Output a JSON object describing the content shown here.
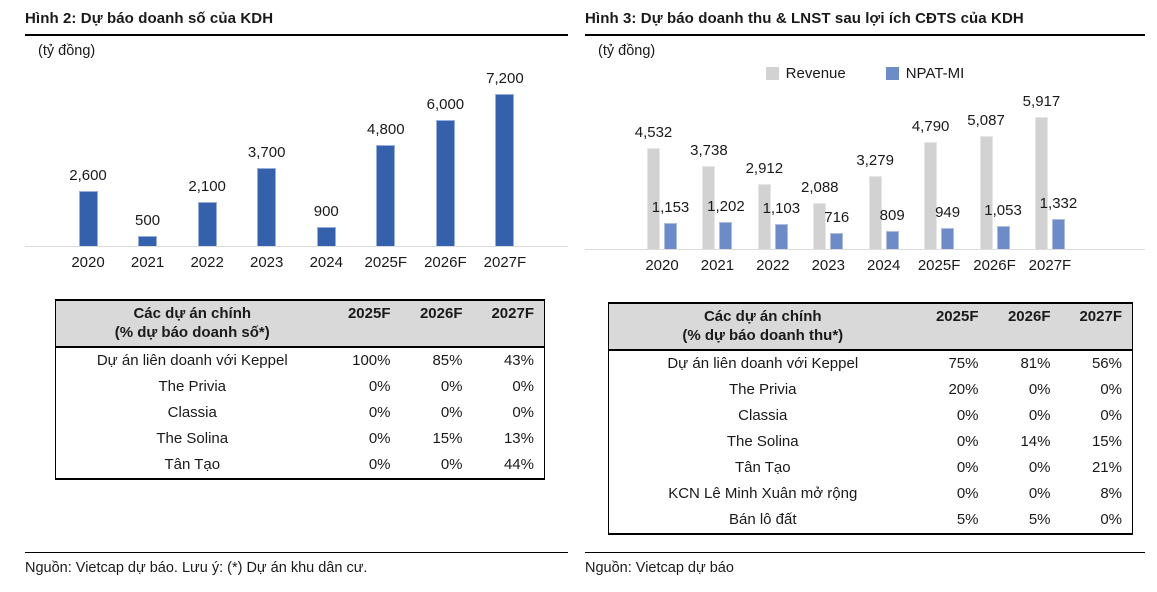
{
  "figure2": {
    "title": "Hình 2: Dự báo doanh số của KDH",
    "unit_label": "(tỷ đồng)",
    "source_note": "Nguồn: Vietcap dự báo. Lưu ý: (*) Dự án khu dân cư.",
    "table": {
      "header_line1": "Các dự án chính",
      "header_line2": "(% dự báo doanh số*)",
      "year_headers": [
        "2025F",
        "2026F",
        "2027F"
      ],
      "rows": [
        {
          "project": "Dự án liên doanh với Keppel",
          "values": [
            "100%",
            "85%",
            "43%"
          ]
        },
        {
          "project": "The Privia",
          "values": [
            "0%",
            "0%",
            "0%"
          ]
        },
        {
          "project": "Classia",
          "values": [
            "0%",
            "0%",
            "0%"
          ]
        },
        {
          "project": "The Solina",
          "values": [
            "0%",
            "15%",
            "13%"
          ]
        },
        {
          "project": "Tân Tạo",
          "values": [
            "0%",
            "0%",
            "44%"
          ]
        }
      ]
    }
  },
  "figure3": {
    "title": "Hình 3: Dự báo doanh thu & LNST sau lợi ích CĐTS của KDH",
    "unit_label": "(tỷ đồng)",
    "source_note": "Nguồn: Vietcap dự báo",
    "legend": [
      {
        "label": "Revenue",
        "color": "#d2d2d2"
      },
      {
        "label": "NPAT-MI",
        "color": "#6d8cc7"
      }
    ],
    "table": {
      "header_line1": "Các dự án chính",
      "header_line2": "(% dự báo doanh thu*)",
      "year_headers": [
        "2025F",
        "2026F",
        "2027F"
      ],
      "rows": [
        {
          "project": "Dự án liên doanh với Keppel",
          "values": [
            "75%",
            "81%",
            "56%"
          ]
        },
        {
          "project": "The Privia",
          "values": [
            "20%",
            "0%",
            "0%"
          ]
        },
        {
          "project": "Classia",
          "values": [
            "0%",
            "0%",
            "0%"
          ]
        },
        {
          "project": "The Solina",
          "values": [
            "0%",
            "14%",
            "15%"
          ]
        },
        {
          "project": "Tân Tạo",
          "values": [
            "0%",
            "0%",
            "21%"
          ]
        },
        {
          "project": "KCN Lê Minh Xuân mở rộng",
          "values": [
            "0%",
            "0%",
            "8%"
          ]
        },
        {
          "project": "Bán lô đất",
          "values": [
            "5%",
            "5%",
            "0%"
          ]
        }
      ]
    }
  },
  "chart_data": [
    {
      "id": "sales-forecast-chart",
      "type": "bar",
      "title": "Hình 2: Dự báo doanh số của KDH",
      "ylabel": "tỷ đồng",
      "categories": [
        "2020",
        "2021",
        "2022",
        "2023",
        "2024",
        "2025F",
        "2026F",
        "2027F"
      ],
      "values": [
        2600,
        500,
        2100,
        3700,
        900,
        4800,
        6000,
        7200
      ],
      "value_labels": [
        "2,600",
        "500",
        "2,100",
        "3,700",
        "900",
        "4,800",
        "6,000",
        "7,200"
      ],
      "bar_color": "#3560ac",
      "ylim": [
        0,
        7600
      ],
      "grid": false,
      "data_labels": true,
      "legend_position": "none"
    },
    {
      "id": "revenue-npatmi-chart",
      "type": "bar",
      "title": "Hình 3: Dự báo doanh thu & LNST sau lợi ích CĐTS của KDH",
      "ylabel": "tỷ đồng",
      "categories": [
        "2020",
        "2021",
        "2022",
        "2023",
        "2024",
        "2025F",
        "2026F",
        "2027F"
      ],
      "series": [
        {
          "name": "Revenue",
          "color": "#d2d2d2",
          "values": [
            4532,
            3738,
            2912,
            2088,
            3279,
            4790,
            5087,
            5917
          ],
          "value_labels": [
            "4,532",
            "3,738",
            "2,912",
            "2,088",
            "3,279",
            "4,790",
            "5,087",
            "5,917"
          ]
        },
        {
          "name": "NPAT-MI",
          "color": "#6d8cc7",
          "values": [
            1153,
            1202,
            1103,
            716,
            809,
            949,
            1053,
            1332
          ],
          "value_labels": [
            "1,153",
            "1,202",
            "1,103",
            "716",
            "809",
            "949",
            "1,053",
            "1,332"
          ]
        }
      ],
      "ylim": [
        0,
        6600
      ],
      "grid": false,
      "data_labels": true,
      "legend_position": "top"
    }
  ]
}
